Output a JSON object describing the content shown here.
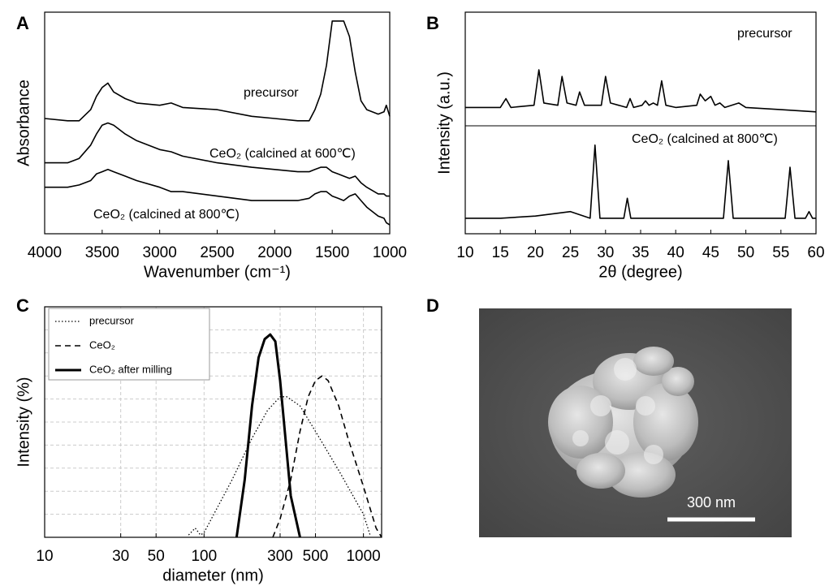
{
  "chart_data": [
    {
      "panel": "A",
      "type": "line",
      "xlabel": "Wavenumber (cm⁻¹)",
      "ylabel": "Absorbance",
      "xlim": [
        4000,
        1000
      ],
      "xticks": [
        4000,
        3500,
        3000,
        2500,
        2000,
        1500,
        1000
      ],
      "ylim": [
        0,
        100
      ],
      "x": [
        4000,
        3800,
        3700,
        3600,
        3550,
        3500,
        3450,
        3400,
        3300,
        3200,
        3000,
        2900,
        2800,
        2500,
        2200,
        2000,
        1800,
        1700,
        1650,
        1600,
        1550,
        1500,
        1450,
        1400,
        1350,
        1300,
        1250,
        1200,
        1100,
        1050,
        1030,
        1000
      ],
      "series": [
        {
          "name": "precursor",
          "color": "#000000",
          "values": [
            52,
            51,
            51,
            56,
            62,
            66,
            68,
            64,
            61,
            59,
            58,
            59,
            57,
            56,
            53,
            52,
            51,
            51,
            56,
            63,
            76,
            96,
            96,
            96,
            89,
            73,
            60,
            56,
            54,
            55,
            58,
            53
          ]
        },
        {
          "name": "CeO₂ (calcined at 600℃)",
          "color": "#000000",
          "values": [
            32,
            32,
            34,
            40,
            45,
            49,
            50,
            49,
            45,
            42,
            38,
            37,
            35,
            32,
            30,
            29,
            28,
            28,
            29,
            30,
            30,
            28,
            27,
            26,
            25,
            26,
            23,
            21,
            18,
            18,
            17,
            17
          ]
        },
        {
          "name": "CeO₂ (calcined at 800℃)",
          "color": "#000000",
          "values": [
            21,
            21,
            22,
            24,
            27,
            28,
            29,
            28,
            26,
            24,
            21,
            19,
            19,
            17,
            15,
            15,
            15,
            16,
            18,
            19,
            19,
            17,
            16,
            15,
            17,
            18,
            15,
            12,
            8,
            7,
            5,
            4
          ]
        }
      ]
    },
    {
      "panel": "B",
      "type": "line",
      "xlabel": "2θ (degree)",
      "ylabel": "Intensity (a.u.)",
      "xlim": [
        10,
        60
      ],
      "xticks": [
        10,
        15,
        20,
        25,
        30,
        35,
        40,
        45,
        50,
        55,
        60
      ],
      "ylim": [
        0,
        100
      ],
      "series": [
        {
          "name": "precursor",
          "color": "#000000",
          "x": [
            10,
            15,
            15.8,
            16.5,
            19.8,
            20.5,
            21.2,
            23.2,
            23.8,
            24.5,
            25.8,
            26.3,
            27,
            29.4,
            30,
            30.7,
            33,
            33.5,
            34,
            35.2,
            35.7,
            36.2,
            36.8,
            37.4,
            38,
            38.6,
            40,
            43,
            43.5,
            44.2,
            45,
            45.6,
            46.3,
            47,
            49,
            50,
            55,
            60
          ],
          "values": [
            57,
            57,
            61,
            57,
            58,
            74,
            59,
            58,
            71,
            59,
            58,
            64,
            58,
            58,
            71,
            59,
            57,
            61,
            57,
            58,
            60,
            58,
            59,
            58,
            69,
            58,
            57,
            58,
            63,
            60,
            62,
            58,
            59,
            57,
            59,
            57,
            56,
            55
          ]
        },
        {
          "name": "CeO₂ (calcined at 800℃)",
          "color": "#000000",
          "x": [
            10,
            15,
            20,
            25,
            27.8,
            28.5,
            29.2,
            32.6,
            33.1,
            33.6,
            40,
            46.8,
            47.5,
            48.2,
            55.6,
            56.3,
            57,
            58.5,
            59,
            59.5,
            60
          ],
          "values": [
            7,
            7,
            8,
            10,
            7,
            40,
            7,
            7,
            16,
            7,
            7,
            7,
            33,
            7,
            7,
            30,
            7,
            7,
            10,
            7,
            7
          ]
        }
      ]
    },
    {
      "panel": "C",
      "type": "line",
      "xlabel": "diameter (nm)",
      "ylabel": "Intensity (%)",
      "xscale": "log",
      "xlim": [
        10,
        1300
      ],
      "xticks": [
        10,
        30,
        50,
        100,
        300,
        500,
        1000
      ],
      "ylim": [
        0,
        100
      ],
      "yticks": [
        10,
        20,
        30,
        40,
        50,
        60,
        70,
        80,
        90
      ],
      "grid": true,
      "legend": "upper left",
      "series": [
        {
          "name": "precursor",
          "color": "#000000",
          "dash": "dotted",
          "x": [
            80,
            88,
            95,
            100,
            150,
            200,
            250,
            300,
            330,
            400,
            500,
            700,
            1000,
            1100
          ],
          "values": [
            1,
            4,
            1,
            2,
            25,
            43,
            55,
            61,
            61,
            57,
            46,
            29,
            10,
            1
          ]
        },
        {
          "name": "CeO₂",
          "color": "#000000",
          "dash": "dashed",
          "x": [
            270,
            300,
            350,
            400,
            450,
            500,
            550,
            600,
            700,
            800,
            1000,
            1200,
            1300
          ],
          "values": [
            0,
            8,
            25,
            46,
            61,
            68,
            70,
            68,
            57,
            43,
            22,
            4,
            0
          ]
        },
        {
          "name": "CeO₂ after milling",
          "color": "#000000",
          "dash": "solid",
          "x": [
            160,
            180,
            200,
            220,
            240,
            260,
            280,
            300,
            350,
            400
          ],
          "values": [
            0,
            25,
            57,
            78,
            86,
            88,
            85,
            68,
            18,
            0
          ]
        }
      ]
    }
  ],
  "panel_d": {
    "label": "D",
    "scale_bar": "300 nm"
  }
}
